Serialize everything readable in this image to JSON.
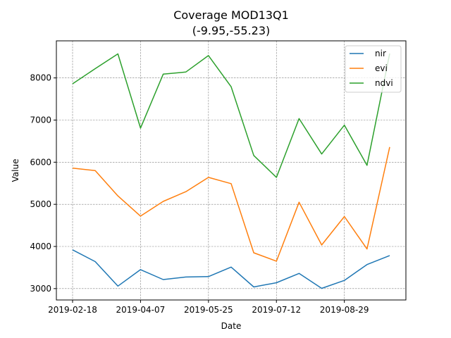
{
  "chart_data": {
    "type": "line",
    "title": "Coverage MOD13Q1",
    "subtitle": "(-9.95,-55.23)",
    "xlabel": "Date",
    "ylabel": "Value",
    "x": [
      "2019-02-18",
      "2019-03-06",
      "2019-03-22",
      "2019-04-07",
      "2019-04-23",
      "2019-05-09",
      "2019-05-25",
      "2019-06-10",
      "2019-06-26",
      "2019-07-12",
      "2019-07-28",
      "2019-08-13",
      "2019-08-29",
      "2019-09-14",
      "2019-09-30"
    ],
    "x_ticks": [
      "2019-02-18",
      "2019-04-07",
      "2019-05-25",
      "2019-07-12",
      "2019-08-29"
    ],
    "y_ticks": [
      3000,
      4000,
      5000,
      6000,
      7000,
      8000
    ],
    "ylim": [
      2730,
      8880
    ],
    "grid": true,
    "legend_position": "top-right",
    "series": [
      {
        "name": "nir",
        "color": "#1f77b4",
        "values": [
          3920,
          3640,
          3060,
          3450,
          3215,
          3275,
          3285,
          3510,
          3040,
          3140,
          3360,
          3005,
          3195,
          3570,
          3785
        ]
      },
      {
        "name": "evi",
        "color": "#ff7f0e",
        "values": [
          5860,
          5800,
          5200,
          4720,
          5070,
          5300,
          5640,
          5490,
          3850,
          3650,
          5050,
          4035,
          4710,
          3940,
          6360
        ]
      },
      {
        "name": "ndvi",
        "color": "#2ca02c",
        "values": [
          7860,
          8220,
          8570,
          6810,
          8090,
          8140,
          8530,
          7790,
          6160,
          5640,
          7035,
          6195,
          6880,
          5925,
          8580
        ]
      }
    ]
  }
}
